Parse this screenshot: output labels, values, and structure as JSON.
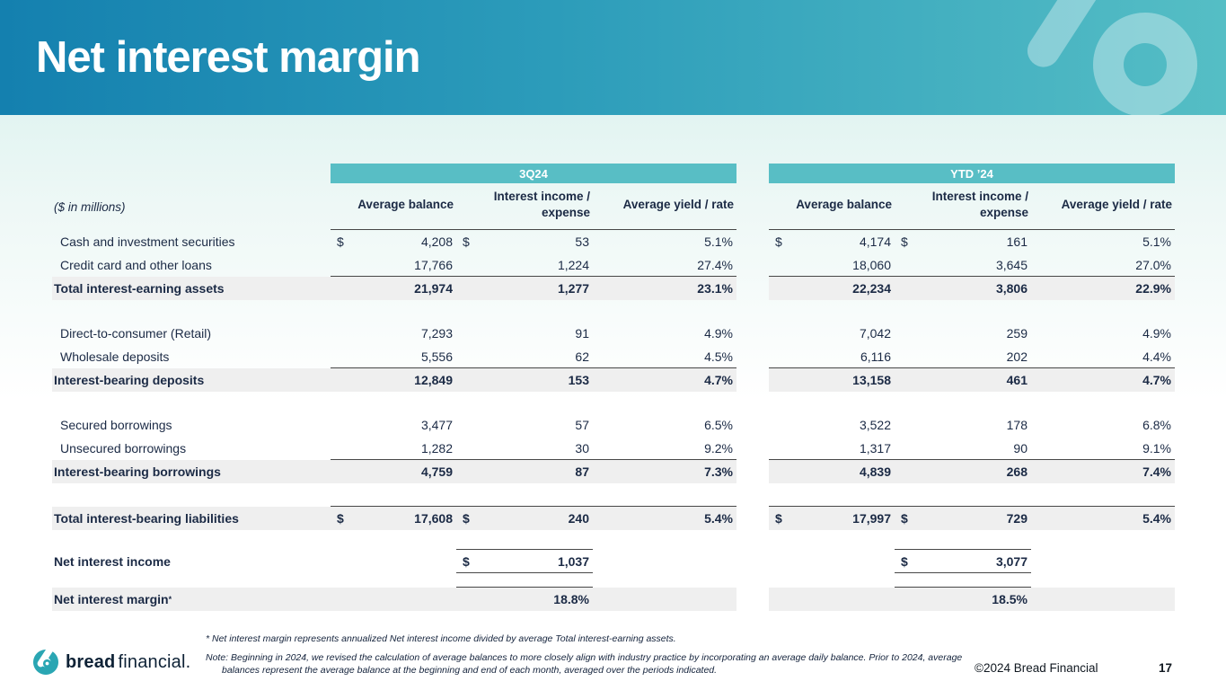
{
  "slide": {
    "title": "Net interest margin",
    "copyright": "©2024 Bread Financial",
    "page_number": "17"
  },
  "logo": {
    "brand_bold": "bread",
    "brand_light": "financial.",
    "brand_teal": "#2aa6b3",
    "watermark_color": "rgba(255,255,255,0.35)"
  },
  "colors": {
    "banner_left": "#1480af",
    "banner_right": "#55bec5",
    "group_header_teal": "#58bec5",
    "band_gray": "#efefef",
    "text_navy": "#1b2a45"
  },
  "table": {
    "units_label": "($ in millions)",
    "groups": [
      {
        "label": "3Q24"
      },
      {
        "label": "YTD ’24"
      }
    ],
    "column_headers": [
      "Average balance",
      "Interest income / expense",
      "Average yield / rate"
    ],
    "rows": [
      {
        "label": "Cash and investment securities",
        "style": "data",
        "cells": [
          {
            "d": "$",
            "v": "4,208"
          },
          {
            "d": "$",
            "v": "53"
          },
          {
            "v": "5.1%"
          },
          {
            "d": "$",
            "v": "4,174"
          },
          {
            "d": "$",
            "v": "161"
          },
          {
            "v": "5.1%"
          }
        ]
      },
      {
        "label": "Credit card and other loans",
        "style": "data",
        "underline": [
          0,
          1,
          2,
          3,
          4,
          5
        ],
        "cells": [
          {
            "v": "17,766"
          },
          {
            "v": "1,224"
          },
          {
            "v": "27.4%"
          },
          {
            "v": "18,060"
          },
          {
            "v": "3,645"
          },
          {
            "v": "27.0%"
          }
        ]
      },
      {
        "label": "Total interest-earning assets",
        "style": "total",
        "cells": [
          {
            "v": "21,974"
          },
          {
            "v": "1,277"
          },
          {
            "v": "23.1%"
          },
          {
            "v": "22,234"
          },
          {
            "v": "3,806"
          },
          {
            "v": "22.9%"
          }
        ]
      },
      {
        "style": "spacer"
      },
      {
        "label": "Direct-to-consumer (Retail)",
        "style": "data",
        "cells": [
          {
            "v": "7,293"
          },
          {
            "v": "91"
          },
          {
            "v": "4.9%"
          },
          {
            "v": "7,042"
          },
          {
            "v": "259"
          },
          {
            "v": "4.9%"
          }
        ]
      },
      {
        "label": "Wholesale deposits",
        "style": "data",
        "underline": [
          0,
          1,
          2,
          3,
          4,
          5
        ],
        "cells": [
          {
            "v": "5,556"
          },
          {
            "v": "62"
          },
          {
            "v": "4.5%"
          },
          {
            "v": "6,116"
          },
          {
            "v": "202"
          },
          {
            "v": "4.4%"
          }
        ]
      },
      {
        "label": "Interest-bearing deposits",
        "style": "total",
        "cells": [
          {
            "v": "12,849"
          },
          {
            "v": "153"
          },
          {
            "v": "4.7%"
          },
          {
            "v": "13,158"
          },
          {
            "v": "461"
          },
          {
            "v": "4.7%"
          }
        ]
      },
      {
        "style": "spacer"
      },
      {
        "label": "Secured borrowings",
        "style": "data",
        "cells": [
          {
            "v": "3,477"
          },
          {
            "v": "57"
          },
          {
            "v": "6.5%"
          },
          {
            "v": "3,522"
          },
          {
            "v": "178"
          },
          {
            "v": "6.8%"
          }
        ]
      },
      {
        "label": "Unsecured borrowings",
        "style": "data",
        "underline": [
          0,
          1,
          2,
          3,
          4,
          5
        ],
        "cells": [
          {
            "v": "1,282"
          },
          {
            "v": "30"
          },
          {
            "v": "9.2%"
          },
          {
            "v": "1,317"
          },
          {
            "v": "90"
          },
          {
            "v": "9.1%"
          }
        ]
      },
      {
        "label": "Interest-bearing borrowings",
        "style": "total",
        "cells": [
          {
            "v": "4,759"
          },
          {
            "v": "87"
          },
          {
            "v": "7.3%"
          },
          {
            "v": "4,839"
          },
          {
            "v": "268"
          },
          {
            "v": "7.4%"
          }
        ]
      },
      {
        "style": "spacer",
        "h": 26,
        "underline": [
          0,
          1,
          2,
          3,
          4,
          5
        ]
      },
      {
        "label": "Total interest-bearing liabilities",
        "style": "total",
        "cells": [
          {
            "d": "$",
            "v": "17,608"
          },
          {
            "d": "$",
            "v": "240"
          },
          {
            "v": "5.4%"
          },
          {
            "d": "$",
            "v": "17,997"
          },
          {
            "d": "$",
            "v": "729"
          },
          {
            "v": "5.4%"
          }
        ]
      },
      {
        "style": "spacer",
        "h": 22,
        "underline": [
          1,
          4
        ]
      },
      {
        "label": "Net interest income",
        "style": "bold",
        "underline": [
          1,
          4
        ],
        "cells": [
          null,
          {
            "d": "$",
            "v": "1,037"
          },
          null,
          null,
          {
            "d": "$",
            "v": "3,077"
          },
          null
        ]
      },
      {
        "style": "spacer",
        "h": 16,
        "underline": [
          1,
          4
        ]
      },
      {
        "label": "Net interest margin",
        "sup": "*",
        "style": "total",
        "cells": [
          null,
          {
            "v": "18.8%"
          },
          null,
          null,
          {
            "v": "18.5%"
          },
          null
        ]
      }
    ]
  },
  "footnotes": {
    "asterisk": "*  Net interest margin represents annualized Net interest income divided by average Total interest-earning assets.",
    "note": "Note: Beginning in 2024, we revised the calculation of average balances to more closely align with industry practice by incorporating an average daily balance. Prior to 2024, average balances represent the average balance at the beginning and end of each month, averaged over the periods indicated."
  }
}
